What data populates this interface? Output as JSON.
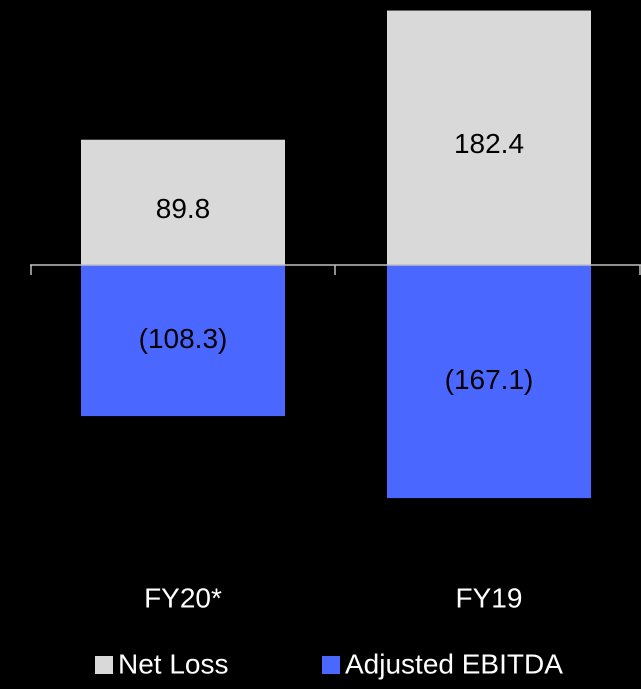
{
  "chart_data": {
    "type": "bar",
    "categories": [
      "FY20*",
      "FY19"
    ],
    "series": [
      {
        "name": "Net Loss",
        "color": "#d9d9d9",
        "values": [
          89.8,
          182.4
        ]
      },
      {
        "name": "Adjusted EBITDA",
        "color": "#4a67ff",
        "values": [
          -108.3,
          -167.1
        ],
        "value_labels": [
          "(108.3)",
          "(167.1)"
        ]
      }
    ],
    "legend": "bottom"
  }
}
